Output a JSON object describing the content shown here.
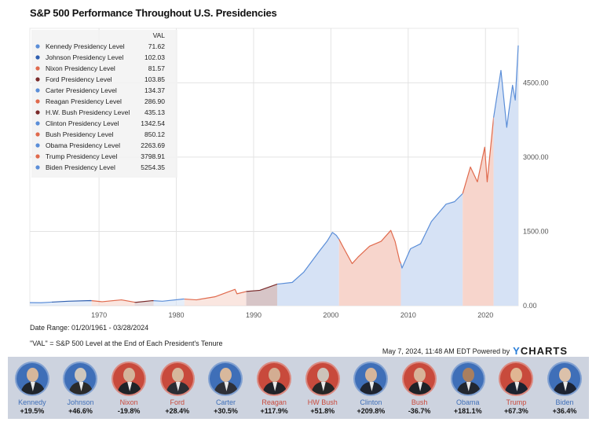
{
  "title": "S&P 500 Performance Throughout U.S. Presidencies",
  "colors": {
    "dem_line": "#5b8ed8",
    "dem_fill": "#d6e2f5",
    "rep_line": "#e06a4d",
    "rep_fill": "#f7d5cc",
    "dark_rep_line": "#7a2a2a",
    "dark_rep_fill": "#d7c5c7",
    "dark_dem_line": "#2f5fb0",
    "grid": "#e3e3e3",
    "strip_bg": "#cdd3df"
  },
  "chart_data": {
    "type": "area",
    "title": "S&P 500 Performance Throughout U.S. Presidencies",
    "xlabel": "",
    "ylabel": "",
    "xlim": [
      1961.05,
      2024.24
    ],
    "ylim": [
      0,
      5600
    ],
    "x_ticks": [
      1970,
      1980,
      1990,
      2000,
      2010,
      2020
    ],
    "y_ticks": [
      0,
      1500,
      3000,
      4500
    ],
    "y_tick_labels": [
      "0.00",
      "1500.00",
      "3000.00",
      "4500.00"
    ],
    "legend_header": "VAL",
    "legend": [
      {
        "name": "Kennedy Presidency Level",
        "value": "71.62",
        "color": "#5b8ed8"
      },
      {
        "name": "Johnson Presidency Level",
        "value": "102.03",
        "color": "#2f5fb0"
      },
      {
        "name": "Nixon Presidency Level",
        "value": "81.57",
        "color": "#e06a4d"
      },
      {
        "name": "Ford Presidency Level",
        "value": "103.85",
        "color": "#7a2a2a"
      },
      {
        "name": "Carter Presidency Level",
        "value": "134.37",
        "color": "#5b8ed8"
      },
      {
        "name": "Reagan Presidency Level",
        "value": "286.90",
        "color": "#e06a4d"
      },
      {
        "name": "H.W. Bush Presidency Level",
        "value": "435.13",
        "color": "#7a2a2a"
      },
      {
        "name": "Clinton Presidency Level",
        "value": "1342.54",
        "color": "#5b8ed8"
      },
      {
        "name": "Bush Presidency Level",
        "value": "850.12",
        "color": "#e06a4d"
      },
      {
        "name": "Obama Presidency Level",
        "value": "2263.69",
        "color": "#5b8ed8"
      },
      {
        "name": "Trump Presidency Level",
        "value": "3798.91",
        "color": "#e06a4d"
      },
      {
        "name": "Biden Presidency Level",
        "value": "5254.35",
        "color": "#5b8ed8"
      }
    ],
    "periods": [
      {
        "name": "Kennedy",
        "start": 1961.05,
        "end": 1963.89,
        "party": "dem",
        "shade": false
      },
      {
        "name": "Johnson",
        "start": 1963.89,
        "end": 1969.05,
        "party": "dem_dark",
        "shade": false
      },
      {
        "name": "Nixon",
        "start": 1969.05,
        "end": 1974.61,
        "party": "rep",
        "shade": false
      },
      {
        "name": "Ford",
        "start": 1974.61,
        "end": 1977.05,
        "party": "rep_dark",
        "shade": false
      },
      {
        "name": "Carter",
        "start": 1977.05,
        "end": 1981.05,
        "party": "dem",
        "shade": false
      },
      {
        "name": "Reagan",
        "start": 1981.05,
        "end": 1989.05,
        "party": "rep",
        "shade": false
      },
      {
        "name": "H.W. Bush",
        "start": 1989.05,
        "end": 1993.05,
        "party": "rep_dark",
        "shade": true
      },
      {
        "name": "Clinton",
        "start": 1993.05,
        "end": 2001.05,
        "party": "dem",
        "shade": true
      },
      {
        "name": "Bush",
        "start": 2001.05,
        "end": 2009.05,
        "party": "rep",
        "shade": true
      },
      {
        "name": "Obama",
        "start": 2009.05,
        "end": 2017.05,
        "party": "dem",
        "shade": true
      },
      {
        "name": "Trump",
        "start": 2017.05,
        "end": 2021.05,
        "party": "rep",
        "shade": true
      },
      {
        "name": "Biden",
        "start": 2021.05,
        "end": 2024.24,
        "party": "dem",
        "shade": true
      }
    ],
    "series": [
      {
        "name": "S&P 500",
        "x": [
          1961.05,
          1962.5,
          1963.89,
          1966.0,
          1968.9,
          1970.4,
          1972.9,
          1974.75,
          1976.9,
          1978.2,
          1980.9,
          1982.6,
          1985.0,
          1987.6,
          1987.85,
          1989.05,
          1990.8,
          1993.05,
          1995.0,
          1996.5,
          1998.5,
          1999.5,
          2000.2,
          2000.7,
          2001.05,
          2001.7,
          2002.75,
          2003.5,
          2005.0,
          2006.5,
          2007.75,
          2008.3,
          2008.9,
          2009.05,
          2009.2,
          2010.3,
          2011.6,
          2013.0,
          2014.9,
          2016.0,
          2017.05,
          2018.05,
          2018.95,
          2019.9,
          2020.22,
          2021.05,
          2022.0,
          2022.75,
          2023.0,
          2023.5,
          2023.85,
          2024.24
        ],
        "y": [
          61,
          60,
          72,
          90,
          103,
          80,
          118,
          67,
          102,
          90,
          135,
          118,
          180,
          330,
          240,
          287,
          310,
          435,
          470,
          680,
          1100,
          1300,
          1480,
          1420,
          1342,
          1150,
          850,
          980,
          1200,
          1300,
          1520,
          1300,
          900,
          850,
          760,
          1150,
          1250,
          1700,
          2050,
          2100,
          2264,
          2800,
          2500,
          3200,
          2500,
          3799,
          4750,
          3600,
          3900,
          4450,
          4150,
          5254
        ]
      }
    ]
  },
  "footer": {
    "date_range": "Date Range: 01/20/1961 - 03/28/2024",
    "val_note": "\"VAL\" = S&P 500 Level at the End of Each President's Tenure",
    "timestamp": "May 7, 2024, 11:48 AM EDT Powered by",
    "brand_y": "Y",
    "brand_rest": "CHARTS"
  },
  "presidents": [
    {
      "name": "Kennedy",
      "change": "+19.5%",
      "party_color": "#3f6fb8",
      "name_color": "#3f6fb8",
      "skin": "#d7b79b",
      "suit": "#20252c"
    },
    {
      "name": "Johnson",
      "change": "+46.6%",
      "party_color": "#3f6fb8",
      "name_color": "#3f6fb8",
      "skin": "#cfc7bd",
      "suit": "#2a2a2a"
    },
    {
      "name": "Nixon",
      "change": "-19.8%",
      "party_color": "#c84a3c",
      "name_color": "#c84a3c",
      "skin": "#d4b49a",
      "suit": "#1f2328"
    },
    {
      "name": "Ford",
      "change": "+28.4%",
      "party_color": "#c84a3c",
      "name_color": "#c84a3c",
      "skin": "#d6b79c",
      "suit": "#2b2d33"
    },
    {
      "name": "Carter",
      "change": "+30.5%",
      "party_color": "#3f6fb8",
      "name_color": "#3f6fb8",
      "skin": "#d8b89c",
      "suit": "#2e3038"
    },
    {
      "name": "Reagan",
      "change": "+117.9%",
      "party_color": "#c84a3c",
      "name_color": "#c84a3c",
      "skin": "#d3ad92",
      "suit": "#202329"
    },
    {
      "name": "HW Bush",
      "change": "+51.8%",
      "party_color": "#c84a3c",
      "name_color": "#c84a3c",
      "skin": "#ccc3ba",
      "suit": "#262626"
    },
    {
      "name": "Clinton",
      "change": "+209.8%",
      "party_color": "#3f6fb8",
      "name_color": "#3f6fb8",
      "skin": "#d5b59b",
      "suit": "#1f2430"
    },
    {
      "name": "Bush",
      "change": "-36.7%",
      "party_color": "#c84a3c",
      "name_color": "#c84a3c",
      "skin": "#d8b398",
      "suit": "#1e2227"
    },
    {
      "name": "Obama",
      "change": "+181.1%",
      "party_color": "#3f6fb8",
      "name_color": "#3f6fb8",
      "skin": "#a97f5f",
      "suit": "#222730"
    },
    {
      "name": "Trump",
      "change": "+67.3%",
      "party_color": "#c84a3c",
      "name_color": "#c84a3c",
      "skin": "#e0b693",
      "suit": "#1b2230"
    },
    {
      "name": "Biden",
      "change": "+36.4%",
      "party_color": "#3f6fb8",
      "name_color": "#3f6fb8",
      "skin": "#dcc1aa",
      "suit": "#1c2333"
    }
  ]
}
